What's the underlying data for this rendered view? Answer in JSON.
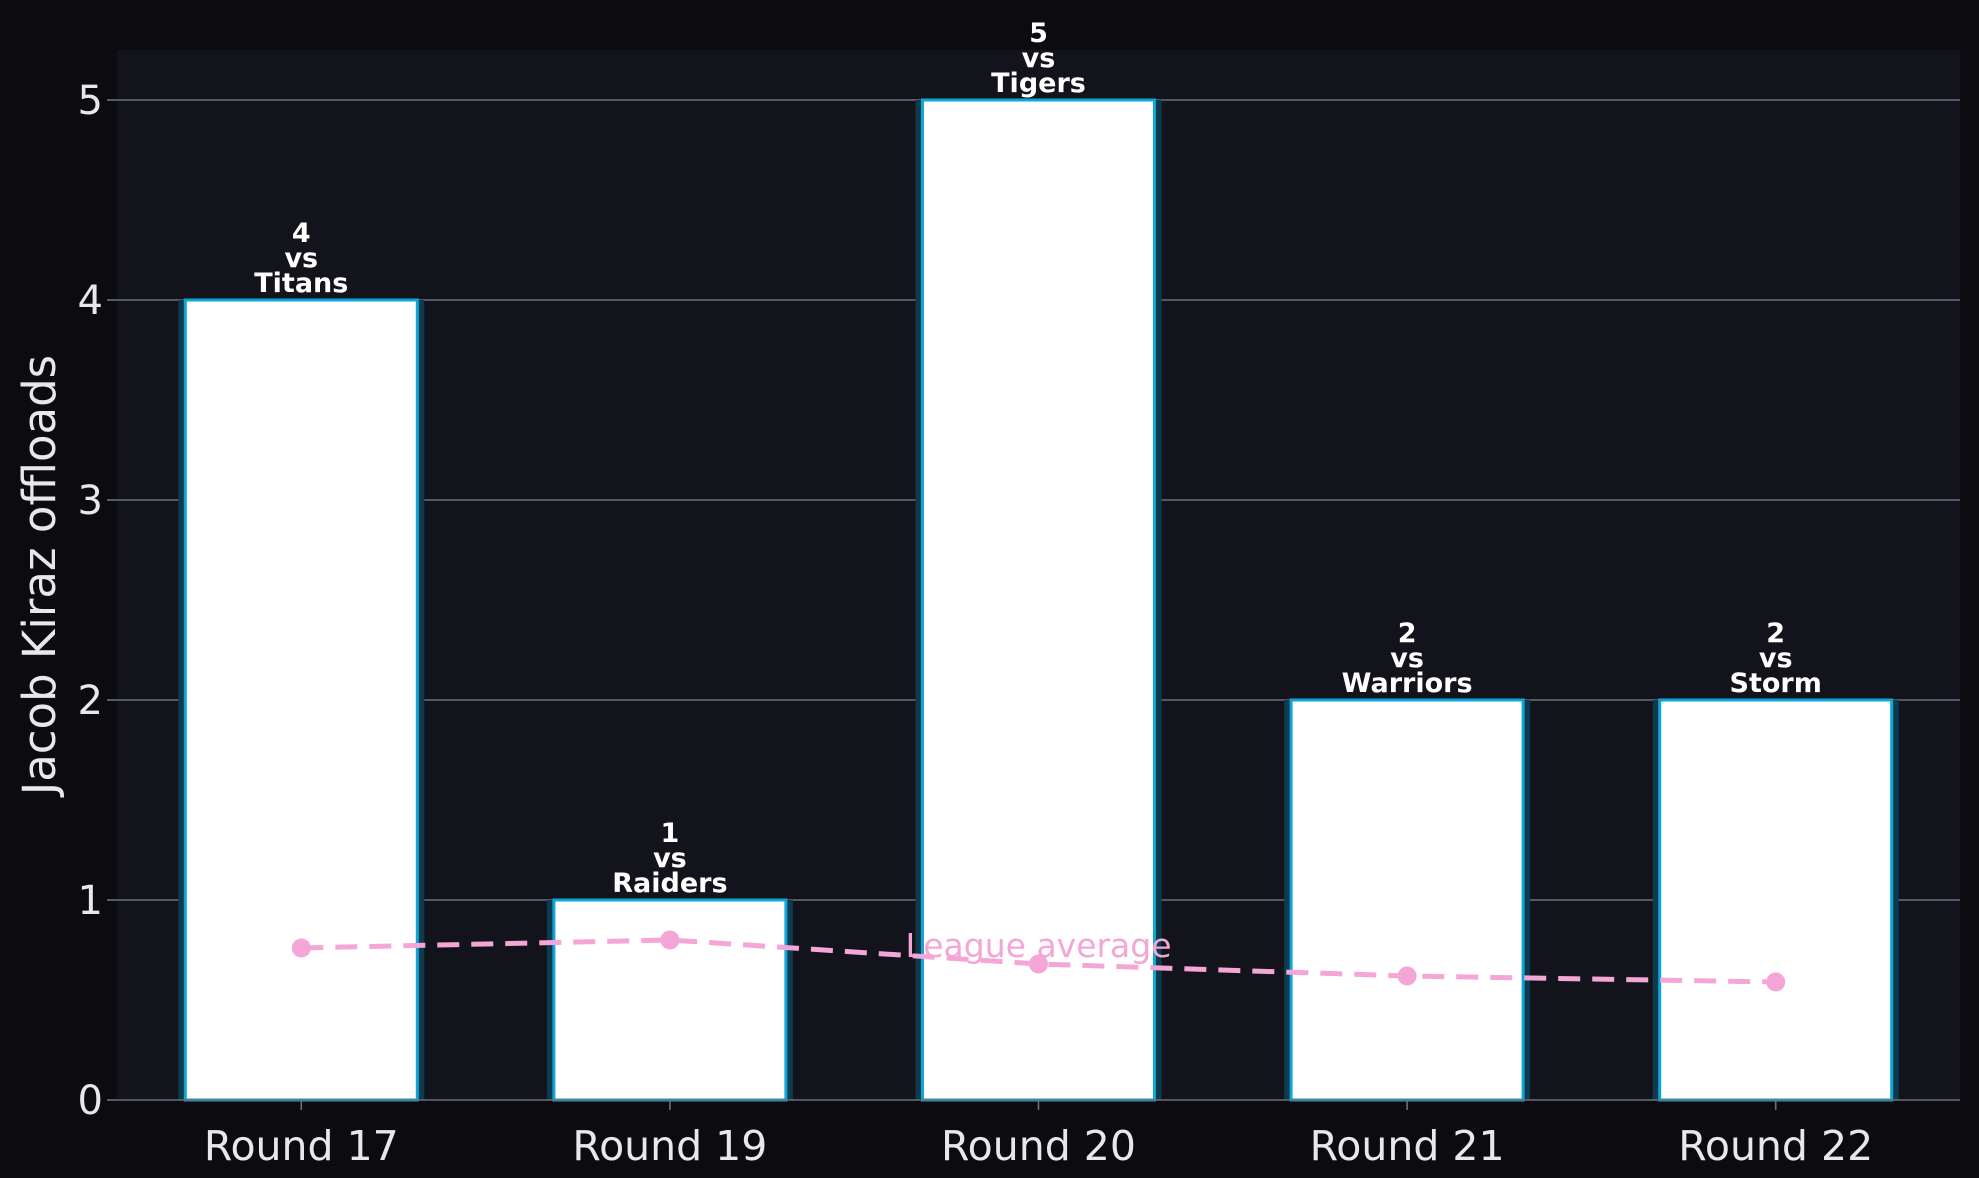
{
  "chart_data": {
    "type": "bar",
    "ylabel": "Jacob Kiraz offloads",
    "xlabel": "",
    "ylim": [
      0,
      5.25
    ],
    "yticks": [
      0,
      1,
      2,
      3,
      4,
      5
    ],
    "grid": "horizontal",
    "categories": [
      "Round 17",
      "Round 19",
      "Round 20",
      "Round 21",
      "Round 22"
    ],
    "values": [
      4,
      1,
      5,
      2,
      2
    ],
    "data_labels": [
      [
        "4",
        "vs",
        "Titans"
      ],
      [
        "1",
        "vs",
        "Raiders"
      ],
      [
        "5",
        "vs",
        "Tigers"
      ],
      [
        "2",
        "vs",
        "Warriors"
      ],
      [
        "2",
        "vs",
        "Storm"
      ]
    ],
    "overlay_line": {
      "name": "League average",
      "values": [
        0.76,
        0.8,
        0.68,
        0.62,
        0.59
      ],
      "style": "dashed",
      "color": "#f4a6d7"
    },
    "colors": {
      "page_background": "#0c0c10",
      "plot_background": "#13141b",
      "bar_fill": "#ffffff",
      "bar_edge": "#0ea5d8",
      "bar_glow": "#0e3a4d",
      "grid": "#6b6f78",
      "text": "#e8e8ec"
    }
  }
}
